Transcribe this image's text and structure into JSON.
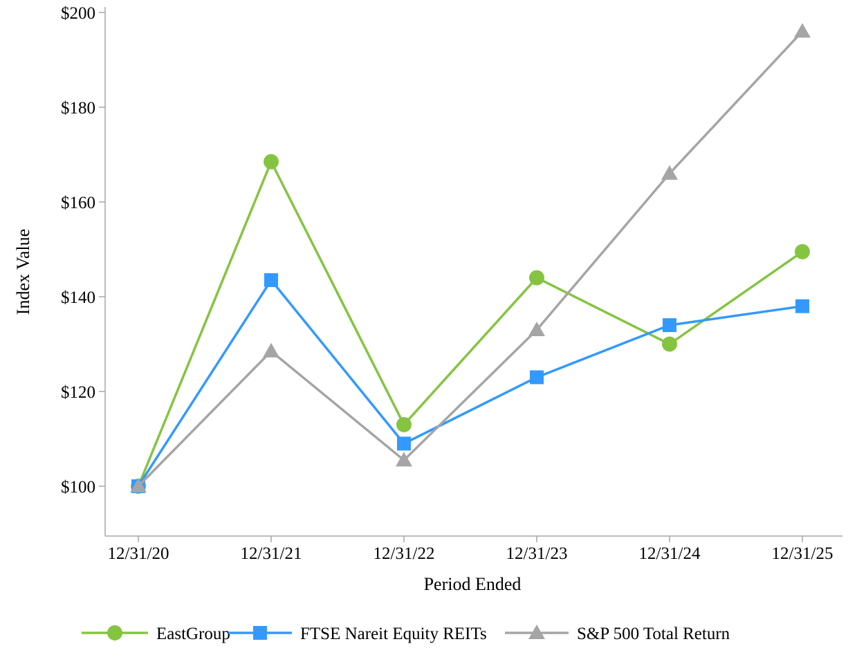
{
  "chart_data": {
    "type": "line",
    "title": "",
    "xlabel": "Period Ended",
    "ylabel": "Index Value",
    "categories": [
      "12/31/20",
      "12/31/21",
      "12/31/22",
      "12/31/23",
      "12/31/24",
      "12/31/25"
    ],
    "y_ticks": [
      100,
      120,
      140,
      160,
      180,
      200
    ],
    "y_tick_labels": [
      "$100",
      "$120",
      "$140",
      "$160",
      "$180",
      "$200"
    ],
    "ylim": [
      89,
      202
    ],
    "grid": false,
    "legend_position": "bottom",
    "axis_color": "#A6A6A6",
    "series": [
      {
        "name": "EastGroup",
        "marker": "circle",
        "color": "#85C441",
        "values": [
          100,
          168.5,
          113,
          144,
          130,
          149.5
        ]
      },
      {
        "name": "FTSE Nareit Equity REITs",
        "marker": "square",
        "color": "#3399FF",
        "values": [
          100,
          143.5,
          109,
          123,
          134,
          138
        ]
      },
      {
        "name": "S&P 500 Total Return",
        "marker": "triangle",
        "color": "#A5A5A5",
        "values": [
          100,
          128.5,
          105.5,
          133,
          166,
          196
        ]
      }
    ]
  }
}
